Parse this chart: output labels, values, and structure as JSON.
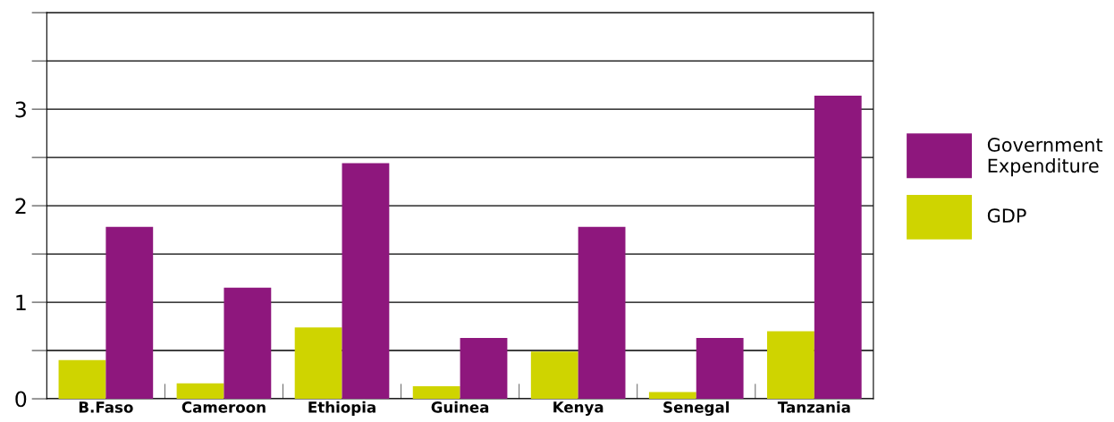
{
  "chart_data": {
    "type": "bar",
    "categories": [
      "B.Faso",
      "Cameroon",
      "Ethiopia",
      "Guinea",
      "Kenya",
      "Senegal",
      "Tanzania"
    ],
    "series": [
      {
        "name": "GDP",
        "color": "#cfd400",
        "values": [
          0.4,
          0.16,
          0.74,
          0.13,
          0.49,
          0.07,
          0.7
        ]
      },
      {
        "name": "Government Expenditure",
        "color": "#8e177d",
        "values": [
          1.78,
          1.15,
          2.44,
          0.63,
          1.78,
          0.63,
          3.14
        ]
      }
    ],
    "ylim": [
      0,
      4
    ],
    "yticks": [
      0,
      {
        "value": 0.5,
        "label": null
      },
      1,
      {
        "value": 1.5,
        "label": null
      },
      2,
      {
        "value": 2.5,
        "label": null
      },
      3,
      {
        "value": 3.5,
        "label": null
      },
      {
        "value": 4,
        "label": null
      }
    ],
    "grid": "y",
    "legend": "right"
  }
}
